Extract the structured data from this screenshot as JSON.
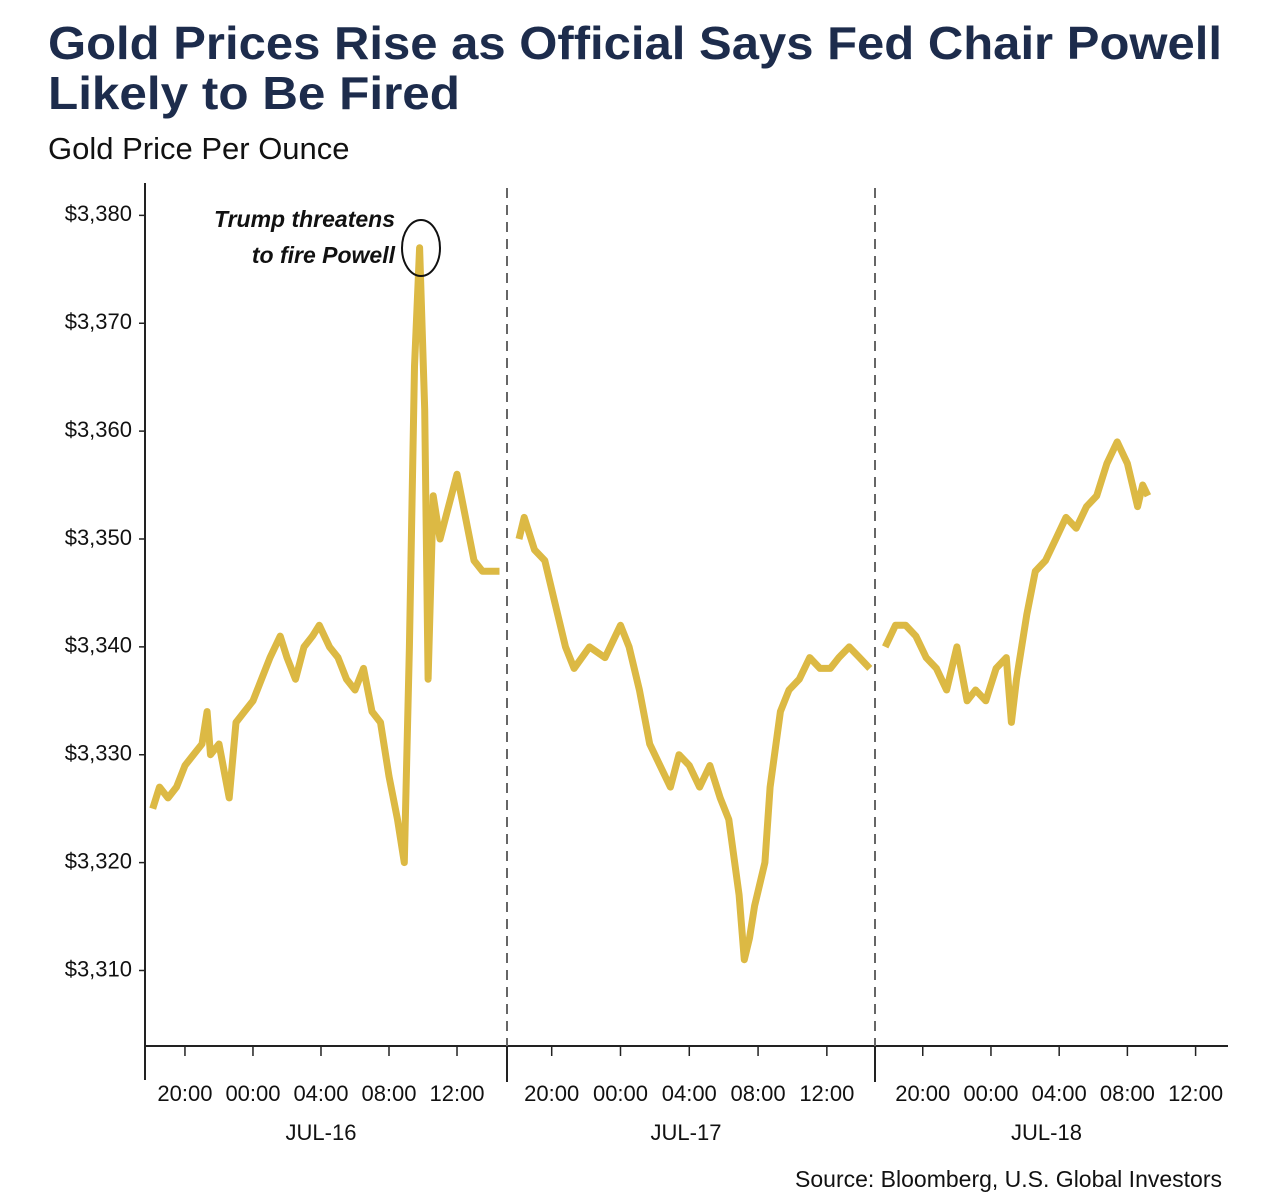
{
  "chart_data": {
    "type": "line",
    "title": [
      "Gold Prices Rise as Official Says Fed Chair Powell",
      "Likely to Be Fired"
    ],
    "subtitle": "Gold Price Per Ounce",
    "source": "Source: Bloomberg, U.S. Global Investors",
    "annotation": [
      "Trump threatens",
      "to fire Powell"
    ],
    "color": "#dcb944",
    "ylim": [
      3303,
      3383
    ],
    "yticks": [
      {
        "value": 3310,
        "label": "$3,310"
      },
      {
        "value": 3320,
        "label": "$3,320"
      },
      {
        "value": 3330,
        "label": "$3,330"
      },
      {
        "value": 3340,
        "label": "$3,340"
      },
      {
        "value": 3350,
        "label": "$3,350"
      },
      {
        "value": 3360,
        "label": "$3,360"
      },
      {
        "value": 3370,
        "label": "$3,370"
      },
      {
        "value": 3380,
        "label": "$3,380"
      }
    ],
    "panels": [
      {
        "label": "JUL-16",
        "xlim": [
          17.65,
          38.94
        ],
        "xticks": [
          {
            "value": 20,
            "label": "20:00"
          },
          {
            "value": 24,
            "label": "00:00"
          },
          {
            "value": 28,
            "label": "04:00"
          },
          {
            "value": 32,
            "label": "08:00"
          },
          {
            "value": 36,
            "label": "12:00"
          }
        ],
        "x": [
          18.1,
          18.5,
          19,
          19.5,
          20,
          20.5,
          21,
          21.3,
          21.5,
          22,
          22.6,
          23,
          23.5,
          24,
          24.5,
          25,
          25.6,
          26,
          26.5,
          27,
          27.5,
          27.9,
          28.5,
          29,
          29.5,
          30,
          30.5,
          31,
          31.5,
          32,
          32.5,
          32.9,
          33.2,
          33.5,
          33.8,
          34.1,
          34.3,
          34.6,
          35,
          35.5,
          36,
          36.5,
          37,
          37.5,
          38,
          38.5
        ],
        "values": [
          3325,
          3327,
          3326,
          3327,
          3329,
          3330,
          3331,
          3334,
          3330,
          3331,
          3326,
          3333,
          3334,
          3335,
          3337,
          3339,
          3341,
          3339,
          3337,
          3340,
          3341,
          3342,
          3340,
          3339,
          3337,
          3336,
          3338,
          3334,
          3333,
          3328,
          3324,
          3320,
          3340,
          3366,
          3377,
          3362,
          3337,
          3354,
          3350,
          3353,
          3356,
          3352,
          3348,
          3347,
          3347,
          3347
        ]
      },
      {
        "label": "JUL-17",
        "xlim": [
          17.4,
          38.8
        ],
        "xticks": [
          {
            "value": 20,
            "label": "20:00"
          },
          {
            "value": 24,
            "label": "00:00"
          },
          {
            "value": 28,
            "label": "04:00"
          },
          {
            "value": 32,
            "label": "08:00"
          },
          {
            "value": 36,
            "label": "12:00"
          }
        ],
        "x": [
          18.1,
          18.4,
          19,
          19.6,
          20.2,
          20.8,
          21.3,
          22.2,
          23.1,
          24,
          24.5,
          25.1,
          25.7,
          26.3,
          26.9,
          27.4,
          28,
          28.6,
          29.2,
          29.8,
          30.3,
          30.9,
          31.2,
          31.5,
          31.8,
          32.4,
          32.7,
          33.3,
          33.8,
          34.4,
          35,
          35.6,
          36.2,
          36.7,
          37.3,
          37.9,
          38.5
        ],
        "values": [
          3350,
          3352,
          3349,
          3348,
          3344,
          3340,
          3338,
          3340,
          3339,
          3342,
          3340,
          3336,
          3331,
          3329,
          3327,
          3330,
          3329,
          3327,
          3329,
          3326,
          3324,
          3317,
          3311,
          3313,
          3316,
          3320,
          3327,
          3334,
          3336,
          3337,
          3339,
          3338,
          3338,
          3339,
          3340,
          3339,
          3338
        ]
      },
      {
        "label": "JUL-18",
        "xlim": [
          17.2,
          37.9
        ],
        "xticks": [
          {
            "value": 20,
            "label": "20:00"
          },
          {
            "value": 24,
            "label": "00:00"
          },
          {
            "value": 28,
            "label": "04:00"
          },
          {
            "value": 32,
            "label": "08:00"
          },
          {
            "value": 36,
            "label": "12:00"
          }
        ],
        "x": [
          17.8,
          18.4,
          19,
          19.6,
          20.2,
          20.8,
          21.4,
          22,
          22.6,
          23.1,
          23.7,
          24.3,
          24.9,
          25.2,
          25.5,
          26.1,
          26.6,
          27.2,
          27.8,
          28.4,
          29,
          29.6,
          30.2,
          30.8,
          31.4,
          32,
          32.3,
          32.6,
          32.9,
          33.2
        ],
        "values": [
          3340,
          3342,
          3342,
          3341,
          3339,
          3338,
          3336,
          3340,
          3335,
          3336,
          3335,
          3338,
          3339,
          3333,
          3337,
          3343,
          3347,
          3348,
          3350,
          3352,
          3351,
          3353,
          3354,
          3357,
          3359,
          3357,
          3355,
          3353,
          3355,
          3354
        ]
      }
    ]
  }
}
